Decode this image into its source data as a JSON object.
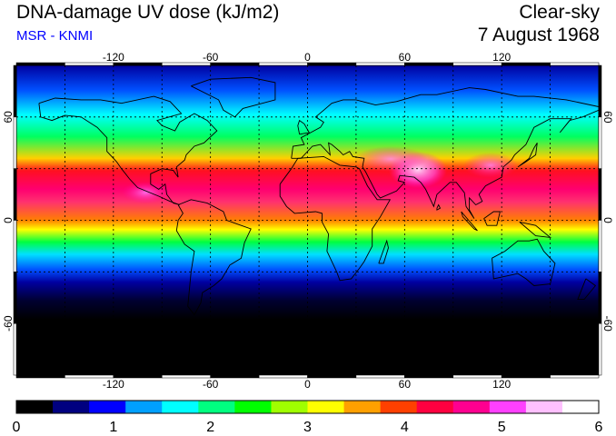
{
  "header": {
    "title": "DNA-damage UV dose (kJ/m2)",
    "source": "MSR - KNMI",
    "condition": "Clear-sky",
    "date": "7 August 1968"
  },
  "map": {
    "projection": "equirectangular",
    "lon_range": [
      -180,
      180
    ],
    "lat_range": [
      -90,
      90
    ],
    "lon_ticks": [
      "-120",
      "-60",
      "0",
      "60",
      "120"
    ],
    "lat_ticks_left": [
      "60",
      "0",
      "-60"
    ],
    "lat_ticks_right": [
      "60",
      "0",
      "-60"
    ],
    "gridlines": "dashed, every 30 degrees",
    "coastlines": true,
    "colorbar": {
      "min": 0,
      "max": 6,
      "tick_labels": [
        "0",
        "1",
        "2",
        "3",
        "4",
        "5",
        "6"
      ],
      "colors": [
        "#000000",
        "#000080",
        "#0000ff",
        "#00a0ff",
        "#00ffff",
        "#00ff80",
        "#00ff00",
        "#a0ff00",
        "#ffff00",
        "#ffa000",
        "#ff4000",
        "#ff0040",
        "#ff0090",
        "#ff40ff",
        "#ffc0ff",
        "#ffffff"
      ]
    }
  }
}
